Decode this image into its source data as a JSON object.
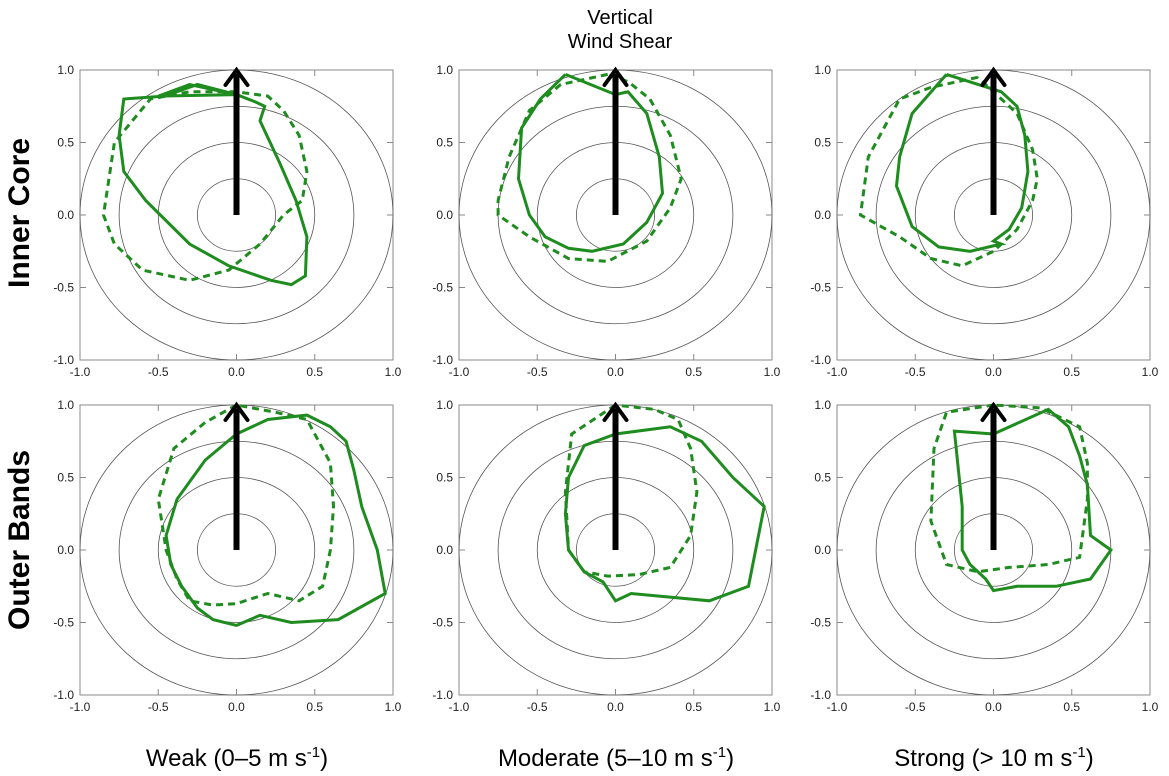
{
  "figure": {
    "top_title_line1": "Vertical",
    "top_title_line2": "Wind Shear",
    "row_titles": [
      "Inner Core",
      "Outer Bands"
    ],
    "columns": [
      {
        "main": "Weak (0–5 m s",
        "sup": "-1",
        "end": ")"
      },
      {
        "main": "Moderate (5–10 m s",
        "sup": "-1",
        "end": ")"
      },
      {
        "main": "Strong (> 10 m s",
        "sup": "-1",
        "end": ")"
      }
    ],
    "colors": {
      "curve": "#1e8c1e",
      "arrow": "#000000",
      "circle": "#555555",
      "axis": "#000000"
    }
  },
  "chart_data": [
    {
      "type": "line",
      "row": "Inner Core",
      "column": "Weak (0–5 m s-1)",
      "xlim": [
        -1.0,
        1.0
      ],
      "ylim": [
        -1.0,
        1.0
      ],
      "xticks": [
        "-1.0",
        "-0.5",
        "0.0",
        "0.5",
        "1.0"
      ],
      "yticks": [
        "-1.0",
        "-0.5",
        "0.0",
        "0.5",
        "1.0"
      ],
      "reference_circles_radius": [
        0.25,
        0.5,
        0.75,
        1.0
      ],
      "shear_arrow": {
        "from": [
          0,
          0
        ],
        "to": [
          0,
          1.0
        ]
      },
      "series": [
        {
          "style": "solid",
          "x": [
            0.0,
            -0.25,
            -0.46,
            -0.72,
            -0.75,
            -0.72,
            -0.58,
            -0.3,
            -0.05,
            0.22,
            0.35,
            0.44,
            0.45,
            0.38,
            0.28,
            0.15,
            0.18,
            0.12,
            0.0,
            -0.3,
            -0.5,
            0.0
          ],
          "y": [
            0.83,
            0.9,
            0.82,
            0.8,
            0.55,
            0.3,
            0.1,
            -0.2,
            -0.35,
            -0.45,
            -0.48,
            -0.42,
            -0.15,
            0.1,
            0.35,
            0.65,
            0.75,
            0.78,
            0.83,
            0.9,
            0.82,
            0.83
          ]
        },
        {
          "style": "dashed",
          "x": [
            0.0,
            -0.3,
            -0.55,
            -0.78,
            -0.85,
            -0.78,
            -0.6,
            -0.3,
            -0.05,
            0.15,
            0.3,
            0.42,
            0.45,
            0.4,
            0.3,
            0.2,
            0.0
          ],
          "y": [
            0.85,
            0.85,
            0.8,
            0.5,
            0.0,
            -0.2,
            -0.38,
            -0.45,
            -0.38,
            -0.2,
            0.0,
            0.1,
            0.3,
            0.55,
            0.72,
            0.82,
            0.85
          ]
        }
      ]
    },
    {
      "type": "line",
      "row": "Inner Core",
      "column": "Moderate (5–10 m s-1)",
      "xlim": [
        -1.0,
        1.0
      ],
      "ylim": [
        -1.0,
        1.0
      ],
      "xticks": [
        "-1.0",
        "-0.5",
        "0.0",
        "0.5",
        "1.0"
      ],
      "yticks": [
        "-1.0",
        "-0.5",
        "0.0",
        "0.5",
        "1.0"
      ],
      "reference_circles_radius": [
        0.25,
        0.5,
        0.75,
        1.0
      ],
      "shear_arrow": {
        "from": [
          0,
          0
        ],
        "to": [
          0,
          1.0
        ]
      },
      "series": [
        {
          "style": "solid",
          "x": [
            -0.32,
            -0.48,
            -0.6,
            -0.62,
            -0.55,
            -0.45,
            -0.3,
            -0.15,
            0.05,
            0.2,
            0.3,
            0.28,
            0.2,
            0.08,
            0.0,
            -0.32
          ],
          "y": [
            0.97,
            0.8,
            0.6,
            0.25,
            0.0,
            -0.15,
            -0.23,
            -0.25,
            -0.2,
            -0.05,
            0.15,
            0.4,
            0.7,
            0.85,
            0.83,
            0.97
          ]
        },
        {
          "style": "dashed",
          "x": [
            -0.05,
            -0.35,
            -0.55,
            -0.68,
            -0.75,
            -0.75,
            -0.55,
            -0.3,
            -0.05,
            0.2,
            0.35,
            0.42,
            0.35,
            0.22,
            0.08,
            -0.05
          ],
          "y": [
            0.97,
            0.9,
            0.72,
            0.4,
            0.1,
            0.0,
            -0.15,
            -0.3,
            -0.32,
            -0.18,
            0.05,
            0.25,
            0.55,
            0.8,
            0.92,
            0.97
          ]
        }
      ]
    },
    {
      "type": "line",
      "row": "Inner Core",
      "column": "Strong (> 10 m s-1)",
      "xlim": [
        -1.0,
        1.0
      ],
      "ylim": [
        -1.0,
        1.0
      ],
      "xticks": [
        "-1.0",
        "-0.5",
        "0.0",
        "0.5",
        "1.0"
      ],
      "yticks": [
        "-1.0",
        "-0.5",
        "0.0",
        "0.5",
        "1.0"
      ],
      "reference_circles_radius": [
        0.25,
        0.5,
        0.75,
        1.0
      ],
      "shear_arrow": {
        "from": [
          0,
          0
        ],
        "to": [
          0,
          1.0
        ]
      },
      "series": [
        {
          "style": "solid",
          "x": [
            -0.3,
            -0.52,
            -0.6,
            -0.62,
            -0.52,
            -0.35,
            -0.15,
            0.05,
            0.0,
            0.1,
            0.18,
            0.22,
            0.2,
            0.15,
            0.05,
            -0.3
          ],
          "y": [
            0.97,
            0.7,
            0.4,
            0.2,
            -0.08,
            -0.22,
            -0.25,
            -0.2,
            -0.18,
            -0.1,
            0.05,
            0.3,
            0.55,
            0.75,
            0.85,
            0.97
          ]
        },
        {
          "style": "dashed",
          "x": [
            -0.1,
            -0.4,
            -0.6,
            -0.8,
            -0.85,
            -0.6,
            -0.4,
            -0.2,
            0.0,
            0.15,
            0.25,
            0.28,
            0.25,
            0.15,
            0.0,
            -0.1
          ],
          "y": [
            0.95,
            0.88,
            0.8,
            0.4,
            0.0,
            -0.15,
            -0.3,
            -0.35,
            -0.25,
            -0.1,
            0.1,
            0.25,
            0.45,
            0.7,
            0.85,
            0.95
          ]
        }
      ]
    },
    {
      "type": "line",
      "row": "Outer Bands",
      "column": "Weak (0–5 m s-1)",
      "xlim": [
        -1.0,
        1.0
      ],
      "ylim": [
        -1.0,
        1.0
      ],
      "xticks": [
        "-1.0",
        "-0.5",
        "0.0",
        "0.5",
        "1.0"
      ],
      "yticks": [
        "-1.0",
        "-0.5",
        "0.0",
        "0.5",
        "1.0"
      ],
      "reference_circles_radius": [
        0.25,
        0.5,
        0.75,
        1.0
      ],
      "shear_arrow": {
        "from": [
          0,
          0
        ],
        "to": [
          0,
          1.0
        ]
      },
      "series": [
        {
          "style": "solid",
          "x": [
            0.0,
            -0.2,
            -0.38,
            -0.45,
            -0.42,
            -0.35,
            -0.25,
            -0.15,
            0.0,
            0.15,
            0.35,
            0.65,
            0.95,
            0.9,
            0.8,
            0.75,
            0.7,
            0.6,
            0.45,
            0.2,
            0.0
          ],
          "y": [
            0.8,
            0.62,
            0.35,
            0.1,
            -0.1,
            -0.25,
            -0.4,
            -0.48,
            -0.52,
            -0.45,
            -0.5,
            -0.48,
            -0.3,
            0.0,
            0.3,
            0.55,
            0.75,
            0.85,
            0.93,
            0.9,
            0.8
          ]
        },
        {
          "style": "dashed",
          "x": [
            0.0,
            -0.2,
            -0.4,
            -0.5,
            -0.45,
            -0.38,
            -0.3,
            -0.15,
            0.0,
            0.2,
            0.4,
            0.55,
            0.6,
            0.62,
            0.6,
            0.45,
            0.25,
            0.0
          ],
          "y": [
            1.0,
            0.88,
            0.7,
            0.35,
            0.0,
            -0.2,
            -0.35,
            -0.38,
            -0.37,
            -0.3,
            -0.35,
            -0.25,
            0.0,
            0.3,
            0.6,
            0.9,
            0.95,
            1.0
          ]
        }
      ]
    },
    {
      "type": "line",
      "row": "Outer Bands",
      "column": "Moderate (5–10 m s-1)",
      "xlim": [
        -1.0,
        1.0
      ],
      "ylim": [
        -1.0,
        1.0
      ],
      "xticks": [
        "-1.0",
        "-0.5",
        "0.0",
        "0.5",
        "1.0"
      ],
      "yticks": [
        "-1.0",
        "-0.5",
        "0.0",
        "0.5",
        "1.0"
      ],
      "reference_circles_radius": [
        0.25,
        0.5,
        0.75,
        1.0
      ],
      "shear_arrow": {
        "from": [
          0,
          0
        ],
        "to": [
          0,
          1.0
        ]
      },
      "series": [
        {
          "style": "solid",
          "x": [
            0.0,
            -0.2,
            -0.3,
            -0.32,
            -0.3,
            -0.2,
            -0.08,
            0.0,
            0.1,
            0.6,
            0.85,
            0.95,
            0.75,
            0.55,
            0.35,
            0.0
          ],
          "y": [
            0.8,
            0.72,
            0.5,
            0.25,
            0.0,
            -0.15,
            -0.22,
            -0.35,
            -0.3,
            -0.35,
            -0.25,
            0.3,
            0.5,
            0.75,
            0.85,
            0.8
          ]
        },
        {
          "style": "dashed",
          "x": [
            0.0,
            -0.28,
            -0.32,
            -0.3,
            -0.2,
            -0.05,
            0.15,
            0.35,
            0.48,
            0.52,
            0.48,
            0.4,
            0.25,
            0.0
          ],
          "y": [
            1.0,
            0.8,
            0.4,
            0.0,
            -0.15,
            -0.18,
            -0.17,
            -0.12,
            0.1,
            0.4,
            0.7,
            0.9,
            0.97,
            1.0
          ]
        }
      ]
    },
    {
      "type": "line",
      "row": "Outer Bands",
      "column": "Strong (> 10 m s-1)",
      "xlim": [
        -1.0,
        1.0
      ],
      "ylim": [
        -1.0,
        1.0
      ],
      "xticks": [
        "-1.0",
        "-0.5",
        "0.0",
        "0.5",
        "1.0"
      ],
      "yticks": [
        "-1.0",
        "-0.5",
        "0.0",
        "0.5",
        "1.0"
      ],
      "reference_circles_radius": [
        0.25,
        0.5,
        0.75,
        1.0
      ],
      "shear_arrow": {
        "from": [
          0,
          0
        ],
        "to": [
          0,
          1.0
        ]
      },
      "series": [
        {
          "style": "solid",
          "x": [
            0.0,
            -0.25,
            -0.2,
            -0.2,
            -0.15,
            -0.05,
            0.0,
            0.15,
            0.4,
            0.62,
            0.75,
            0.62,
            0.6,
            0.55,
            0.48,
            0.35,
            0.0
          ],
          "y": [
            0.8,
            0.82,
            0.3,
            0.0,
            -0.1,
            -0.2,
            -0.28,
            -0.25,
            -0.25,
            -0.2,
            0.0,
            0.1,
            0.45,
            0.65,
            0.85,
            0.97,
            0.8
          ]
        },
        {
          "style": "dashed",
          "x": [
            0.0,
            -0.3,
            -0.38,
            -0.4,
            -0.3,
            -0.1,
            0.1,
            0.35,
            0.55,
            0.6,
            0.6,
            0.55,
            0.3,
            0.0
          ],
          "y": [
            1.0,
            0.95,
            0.7,
            0.2,
            -0.1,
            -0.15,
            -0.12,
            -0.1,
            -0.05,
            0.35,
            0.6,
            0.85,
            0.98,
            1.0
          ]
        }
      ]
    }
  ]
}
